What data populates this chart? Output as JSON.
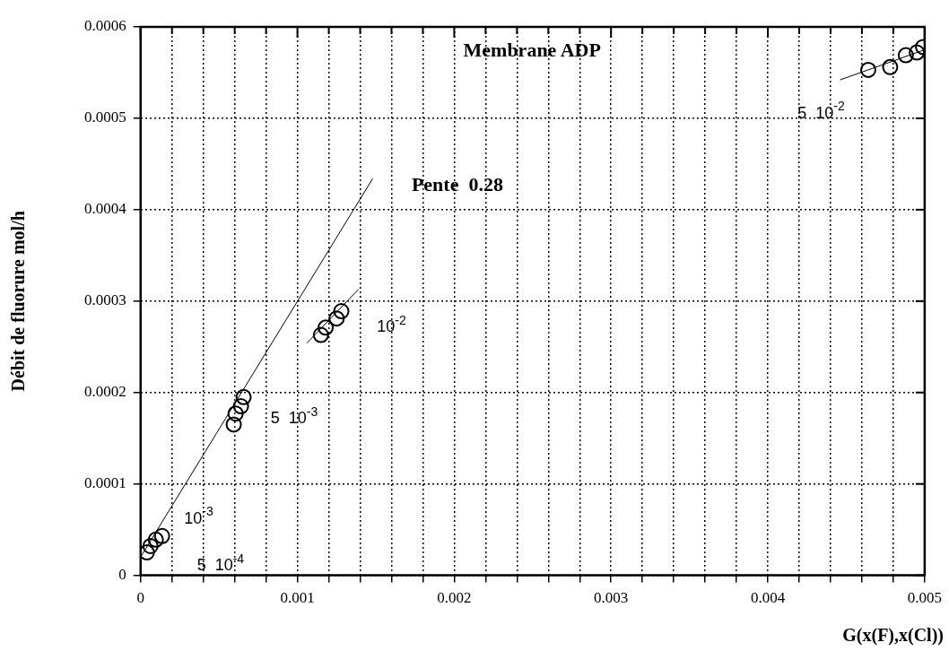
{
  "chart_data": {
    "type": "scatter",
    "title": "Membrane ADP",
    "xlabel": "G(x(F),x(Cl))",
    "ylabel": "Débit de fluorure mol/h",
    "xlim": [
      0,
      0.005
    ],
    "ylim": [
      0,
      0.0006
    ],
    "xticks": [
      0,
      {
        "value": 0.0002,
        "label": null
      },
      {
        "value": 0.0004,
        "label": null
      },
      {
        "value": 0.0006,
        "label": null
      },
      {
        "value": 0.0008,
        "label": null
      },
      0.001,
      {
        "value": 0.0012,
        "label": null
      },
      {
        "value": 0.0014,
        "label": null
      },
      {
        "value": 0.0016,
        "label": null
      },
      {
        "value": 0.0018,
        "label": null
      },
      0.002,
      {
        "value": 0.0022,
        "label": null
      },
      {
        "value": 0.0024,
        "label": null
      },
      {
        "value": 0.0026,
        "label": null
      },
      {
        "value": 0.0028,
        "label": null
      },
      0.003,
      {
        "value": 0.0032,
        "label": null
      },
      {
        "value": 0.0034,
        "label": null
      },
      {
        "value": 0.0036,
        "label": null
      },
      {
        "value": 0.0038,
        "label": null
      },
      0.004,
      {
        "value": 0.0042,
        "label": null
      },
      {
        "value": 0.0044,
        "label": null
      },
      {
        "value": 0.0046,
        "label": null
      },
      {
        "value": 0.0048,
        "label": null
      },
      0.005
    ],
    "yticks": [
      0,
      0.0001,
      0.0002,
      0.0003,
      0.0004,
      0.0005,
      0.0006
    ],
    "grid": true,
    "legend": false,
    "marker": "circle",
    "series": [
      {
        "type": "scatter",
        "color": "#000000",
        "x": [
          4e-05,
          6.3e-05,
          9.7e-05,
          0.000137,
          0.000594,
          0.000606,
          0.00064,
          0.000657,
          0.00115,
          0.00118,
          0.00125,
          0.00128,
          0.00464,
          0.00478,
          0.00488,
          0.00495,
          0.00499
        ],
        "values": [
          2.5e-05,
          3.2e-05,
          3.9e-05,
          4.3e-05,
          0.000165,
          0.000177,
          0.000185,
          0.000195,
          0.000263,
          0.000271,
          0.000281,
          0.000289,
          0.000553,
          0.000556,
          0.000569,
          0.000572,
          0.000578
        ]
      },
      {
        "type": "line",
        "marker": "none",
        "color": "#000000",
        "x": [
          0,
          0.00148
        ],
        "values": [
          2e-05,
          0.000434
        ]
      },
      {
        "type": "line",
        "marker": "none",
        "color": "#000000",
        "x": [
          0.00106,
          0.00139
        ],
        "values": [
          0.000254,
          0.000313
        ]
      },
      {
        "type": "line",
        "marker": "none",
        "color": "#000000",
        "x": [
          0.00446,
          0.005
        ],
        "values": [
          0.000542,
          0.000575
        ]
      }
    ],
    "annotations": [
      "Pente  0.28",
      "10$^{-2}$",
      "5  10$^{-3}$",
      "10$^{-3}$",
      "5  10$^{-4}$",
      "5  10$^{-2}$"
    ]
  }
}
